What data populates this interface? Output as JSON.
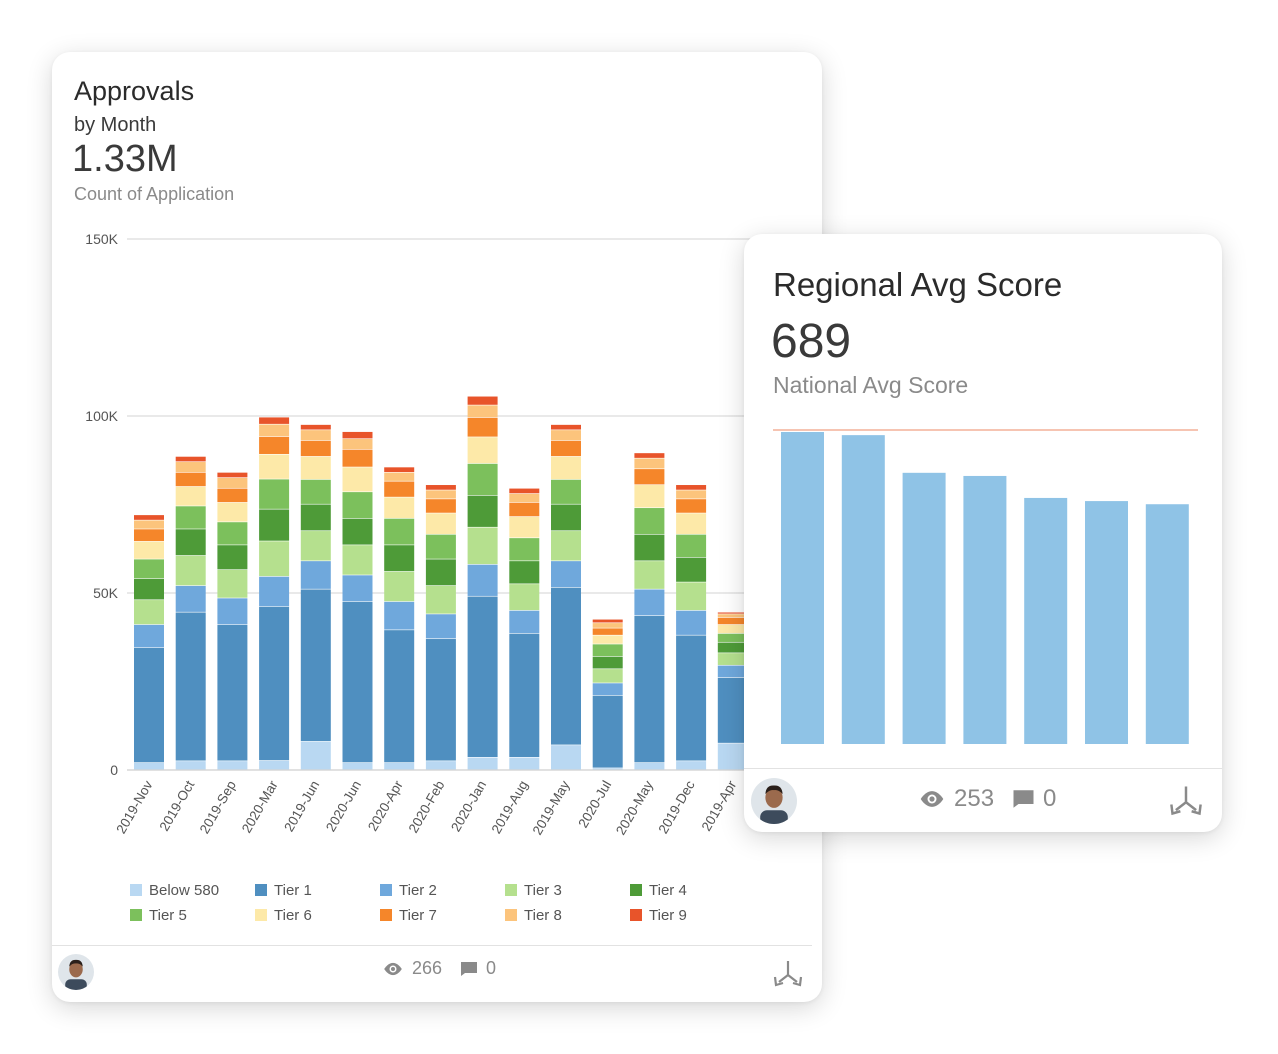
{
  "approvals": {
    "title": "Approvals",
    "subtitle": "by Month",
    "value": "1.33M",
    "value_label": "Count of Application",
    "views": "266",
    "comments": "0",
    "icons": {
      "views": "eye-icon",
      "comments": "comment-icon",
      "drill": "drill-down-icon"
    }
  },
  "regional": {
    "title": "Regional Avg Score",
    "value": "689",
    "value_label": "National Avg Score",
    "views": "253",
    "comments": "0",
    "icons": {
      "views": "eye-icon",
      "comments": "comment-icon",
      "drill": "drill-down-icon"
    }
  },
  "chart_data": [
    {
      "type": "bar",
      "stacked": true,
      "categories": [
        "2019-Nov",
        "2019-Oct",
        "2019-Sep",
        "2020-Mar",
        "2019-Jun",
        "2020-Jun",
        "2020-Apr",
        "2020-Feb",
        "2020-Jan",
        "2019-Aug",
        "2019-May",
        "2020-Jul",
        "2020-May",
        "2019-Dec",
        "2019-Apr"
      ],
      "y_ticks": [
        "0",
        "50K",
        "100K",
        "150K"
      ],
      "ylim": [
        0,
        150000
      ],
      "grid": true,
      "legend_position": "bottom",
      "series": [
        {
          "name": "Below 580",
          "color": "#b9d8f2",
          "values": [
            2000,
            2500,
            2500,
            2600,
            8000,
            2000,
            2000,
            2500,
            3500,
            3500,
            7000,
            500,
            2000,
            2500,
            7500
          ]
        },
        {
          "name": "Tier 1",
          "color": "#4f8fc0",
          "values": [
            32500,
            42000,
            38500,
            43500,
            43000,
            45500,
            37500,
            34500,
            45500,
            35000,
            44500,
            20500,
            41500,
            35500,
            18500
          ]
        },
        {
          "name": "Tier 2",
          "color": "#6fa8dc",
          "values": [
            6500,
            7500,
            7500,
            8500,
            8000,
            7500,
            8000,
            7000,
            9000,
            6500,
            7500,
            3500,
            7500,
            7000,
            3500
          ]
        },
        {
          "name": "Tier 3",
          "color": "#b5e08e",
          "values": [
            7000,
            8500,
            8000,
            10000,
            8500,
            8500,
            8500,
            8000,
            10500,
            7500,
            8500,
            4000,
            8000,
            8000,
            3500
          ]
        },
        {
          "name": "Tier 4",
          "color": "#4e9b38",
          "values": [
            6000,
            7500,
            7000,
            9000,
            7500,
            7500,
            7500,
            7500,
            9000,
            6500,
            7500,
            3500,
            7500,
            7000,
            3000
          ]
        },
        {
          "name": "Tier 5",
          "color": "#7cc05c",
          "values": [
            5500,
            6500,
            6500,
            8500,
            7000,
            7500,
            7500,
            7000,
            9000,
            6500,
            7000,
            3500,
            7500,
            6500,
            2500
          ]
        },
        {
          "name": "Tier 6",
          "color": "#fde9a8",
          "values": [
            5000,
            5500,
            5500,
            7000,
            6500,
            7000,
            6000,
            6000,
            7500,
            6000,
            6500,
            2500,
            6500,
            6000,
            2500
          ]
        },
        {
          "name": "Tier 7",
          "color": "#f5862a",
          "values": [
            3500,
            4000,
            4000,
            5000,
            4500,
            5000,
            4500,
            4000,
            5500,
            4000,
            4500,
            2000,
            4500,
            4000,
            2000
          ]
        },
        {
          "name": "Tier 8",
          "color": "#fcc47c",
          "values": [
            2500,
            3000,
            3000,
            3500,
            3000,
            3000,
            2500,
            2500,
            3500,
            2500,
            3000,
            1500,
            3000,
            2500,
            1000
          ]
        },
        {
          "name": "Tier 9",
          "color": "#e8542a",
          "values": [
            1500,
            1500,
            1500,
            2000,
            1500,
            2000,
            1500,
            1500,
            2500,
            1500,
            1500,
            1000,
            1500,
            1500,
            500
          ]
        }
      ]
    },
    {
      "type": "bar",
      "values": [
        720,
        719,
        707,
        706,
        699,
        698,
        697
      ],
      "reference_line": {
        "value": 720,
        "color": "#f0a184"
      },
      "bar_color": "#8fc3e6",
      "ylim": [
        620,
        720
      ]
    }
  ]
}
